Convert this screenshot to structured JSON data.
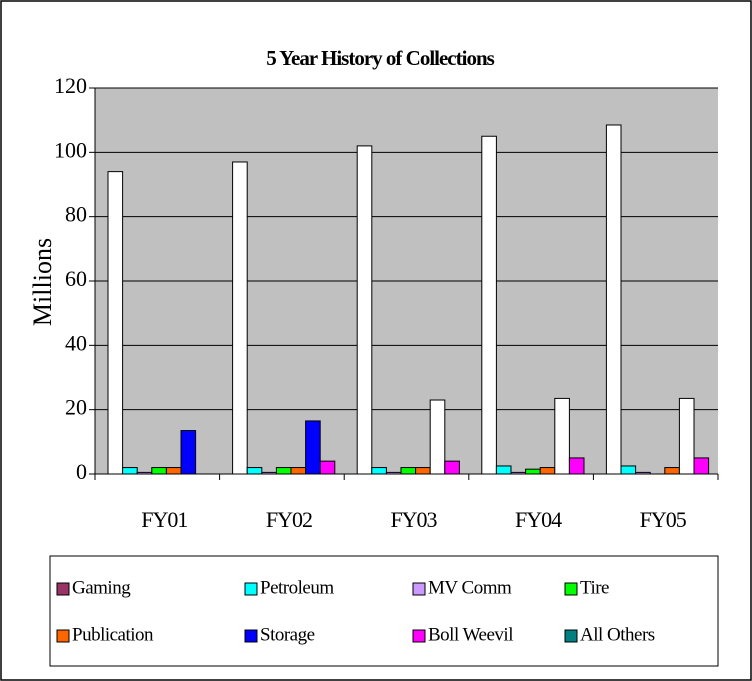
{
  "chart_data": {
    "type": "bar",
    "title": "5 Year History of Collections",
    "y_label": "Millions",
    "categories": [
      "FY01",
      "FY02",
      "FY03",
      "FY04",
      "FY05"
    ],
    "series": [
      {
        "name": "Gaming",
        "color": "#993366",
        "point_colors": [
          "#FFFFFF",
          "#FFFFFF",
          "#FFFFFF",
          "#FFFFFF",
          "#FFFFFF"
        ],
        "values": [
          94,
          97,
          102,
          105,
          108.5
        ]
      },
      {
        "name": "Petroleum",
        "color": "#00FFFF",
        "values": [
          2,
          2,
          2,
          2.5,
          2.5
        ]
      },
      {
        "name": "MV Comm",
        "color": "#CC99FF",
        "values": [
          0.5,
          0.5,
          0.5,
          0.5,
          0.5
        ]
      },
      {
        "name": "Tire",
        "color": "#00FF00",
        "values": [
          2,
          2,
          2,
          1.5,
          0
        ]
      },
      {
        "name": "Publication",
        "color": "#FF6600",
        "values": [
          2,
          2,
          2,
          2,
          2
        ]
      },
      {
        "name": "Storage",
        "color": "#0000FF",
        "point_colors": [
          "#0000FF",
          "#0000FF",
          "#FFFFFF",
          "#FFFFFF",
          "#FFFFFF"
        ],
        "values": [
          13.5,
          16.5,
          23,
          23.5,
          23.5
        ]
      },
      {
        "name": "Boll Weevil",
        "color": "#FF00FF",
        "values": [
          0,
          4,
          4,
          5,
          5
        ]
      },
      {
        "name": "All Others",
        "color": "#008080",
        "values": [
          0,
          0,
          0,
          0,
          0
        ]
      }
    ],
    "ylim": [
      0,
      120
    ],
    "yticks": [
      0,
      20,
      40,
      60,
      80,
      100,
      120
    ],
    "grid": true,
    "plot_background": "#C0C0C0"
  }
}
